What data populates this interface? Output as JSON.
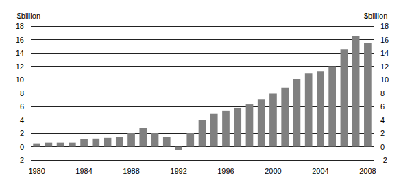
{
  "chart_data": {
    "type": "bar",
    "ylabel": "$billion",
    "y2label": "$billion",
    "categories": [
      "1980",
      null,
      null,
      null,
      "1984",
      null,
      null,
      null,
      "1988",
      null,
      null,
      null,
      "1992",
      null,
      null,
      null,
      "1996",
      null,
      null,
      null,
      "2000",
      null,
      null,
      null,
      "2004",
      null,
      null,
      null,
      "2008"
    ],
    "values": [
      0.5,
      0.6,
      0.6,
      0.6,
      1.1,
      1.2,
      1.3,
      1.4,
      2.0,
      2.8,
      2.1,
      1.4,
      -0.5,
      2.0,
      4.0,
      4.9,
      5.4,
      5.8,
      6.3,
      7.1,
      7.9,
      8.8,
      10.1,
      10.9,
      11.2,
      12.0,
      14.5,
      16.5,
      15.5
    ],
    "color": "#808080",
    "ylim": [
      -2,
      18
    ],
    "yticks": [
      -2,
      0,
      2,
      4,
      6,
      8,
      10,
      12,
      14,
      16,
      18
    ],
    "y2lim": [
      -2,
      18
    ],
    "y2ticks": [
      -2,
      0,
      2,
      4,
      6,
      8,
      10,
      12,
      14,
      16,
      18
    ],
    "grid": true
  }
}
